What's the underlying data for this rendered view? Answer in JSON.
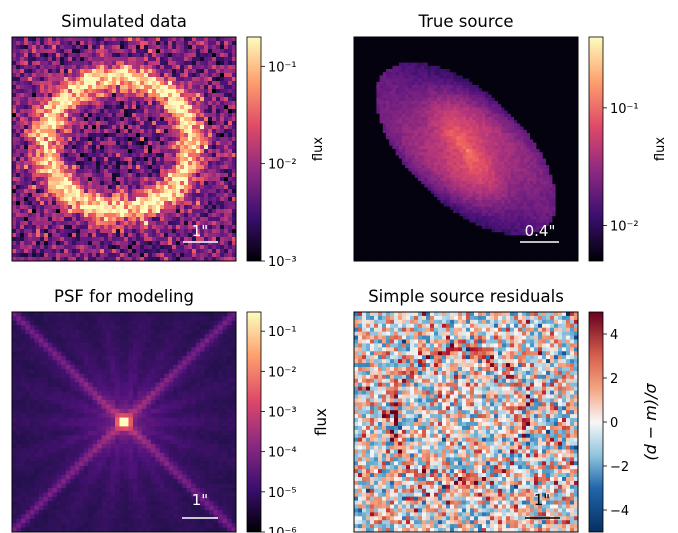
{
  "chart_data": [
    {
      "type": "heatmap",
      "title": "Simulated data",
      "colormap": "magma",
      "colorbar": {
        "label": "flux",
        "scale": "log",
        "range": [
          0.001,
          0.2
        ],
        "ticks": [
          {
            "value": 0.1,
            "label": "10⁻¹"
          },
          {
            "value": 0.01,
            "label": "10⁻²"
          },
          {
            "value": 0.001,
            "label": "10⁻³"
          }
        ]
      },
      "scale_bar": {
        "label": "1\""
      }
    },
    {
      "type": "heatmap",
      "title": "True source",
      "colormap": "magma",
      "colorbar": {
        "label": "flux",
        "scale": "log",
        "range": [
          0.005,
          0.4
        ],
        "ticks": [
          {
            "value": 0.1,
            "label": "10⁻¹"
          },
          {
            "value": 0.01,
            "label": "10⁻²"
          }
        ]
      },
      "scale_bar": {
        "label": "0.4\""
      }
    },
    {
      "type": "heatmap",
      "title": "PSF for modeling",
      "colormap": "magma",
      "colorbar": {
        "label": "flux",
        "scale": "log",
        "range": [
          1e-06,
          0.3
        ],
        "ticks": [
          {
            "value": 0.1,
            "label": "10⁻¹"
          },
          {
            "value": 0.01,
            "label": "10⁻²"
          },
          {
            "value": 0.001,
            "label": "10⁻³"
          },
          {
            "value": 0.0001,
            "label": "10⁻⁴"
          },
          {
            "value": 1e-05,
            "label": "10⁻⁵"
          },
          {
            "value": 1e-06,
            "label": "10⁻⁶"
          }
        ]
      },
      "scale_bar": {
        "label": "1\""
      }
    },
    {
      "type": "heatmap",
      "title": "Simple source residuals",
      "colormap": "RdBu_r",
      "colorbar": {
        "label": "(d − m)/σ",
        "scale": "linear",
        "range": [
          -5,
          5
        ],
        "ticks": [
          {
            "value": 4,
            "label": "4"
          },
          {
            "value": 2,
            "label": "2"
          },
          {
            "value": 0,
            "label": "0"
          },
          {
            "value": -2,
            "label": "−2"
          },
          {
            "value": -4,
            "label": "−4"
          }
        ]
      },
      "scale_bar": {
        "label": "1\""
      }
    }
  ]
}
